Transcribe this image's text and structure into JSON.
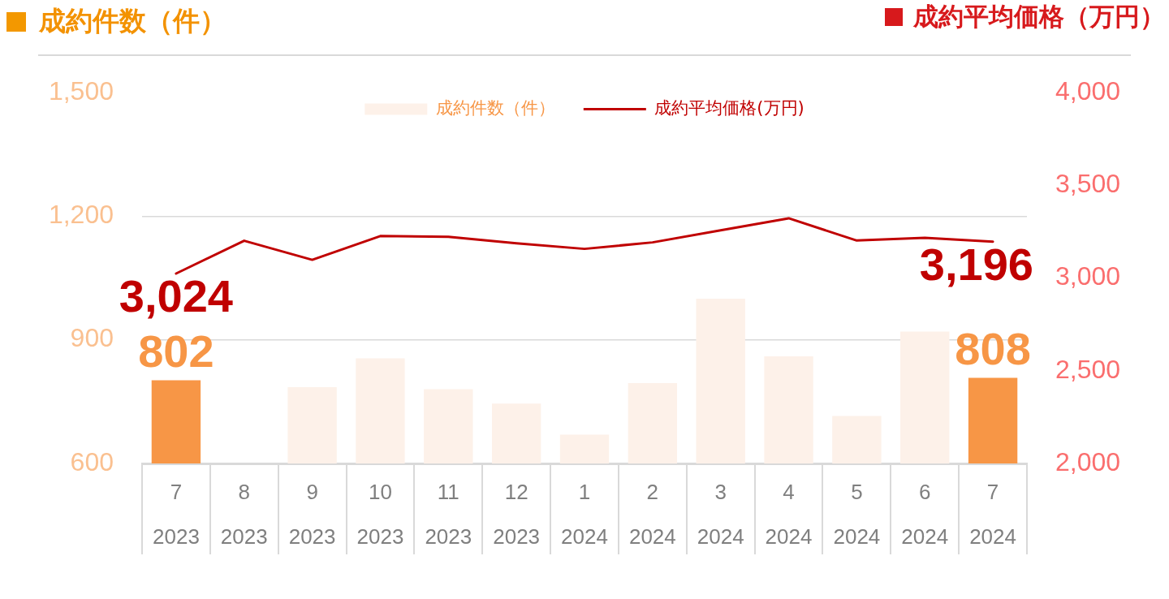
{
  "chart_data": {
    "type": "bar",
    "ylabel": "成約件数（件）",
    "y2label": "成約平均価格（万円）",
    "categories": [
      "7\n2023",
      "8\n2023",
      "9\n2023",
      "10\n2023",
      "11\n2023",
      "12\n2023",
      "1\n2024",
      "2\n2024",
      "3\n2024",
      "4\n2024",
      "5\n2024",
      "6\n2024",
      "7\n2024"
    ],
    "series": [
      {
        "name": "成約件数（件）",
        "color": "#fdf1e9",
        "colors": [
          "#f79646",
          "#fdf1e9",
          "#fdf1e9",
          "#fdf1e9",
          "#fdf1e9",
          "#fdf1e9",
          "#fdf1e9",
          "#fdf1e9",
          "#fdf1e9",
          "#fdf1e9",
          "#fdf1e9",
          "#fdf1e9",
          "#f79646"
        ],
        "values": [
          802,
          null,
          785,
          855,
          780,
          745,
          670,
          795,
          1000,
          860,
          715,
          920,
          808
        ],
        "value_labels": [
          "802",
          null,
          null,
          null,
          null,
          null,
          null,
          null,
          null,
          null,
          null,
          null,
          "808"
        ]
      },
      {
        "name": "成約平均価格(万円)",
        "type": "line",
        "axis": "y2",
        "color": "#c00000",
        "values": [
          3024,
          3201,
          3098,
          3226,
          3222,
          3187,
          3157,
          3192,
          3257,
          3322,
          3202,
          3217,
          3196
        ],
        "value_labels": [
          "3,024",
          null,
          null,
          null,
          null,
          null,
          null,
          null,
          null,
          null,
          null,
          null,
          "3,196"
        ]
      }
    ],
    "ylim": [
      600,
      1500
    ],
    "yticks": [
      600,
      900,
      {
        "value": 1200,
        "label": "1,200"
      },
      {
        "value": 1500,
        "label": "1,500"
      }
    ],
    "y2lim": [
      2000,
      4000
    ],
    "y2ticks": [
      {
        "value": 2000,
        "label": "2,000"
      },
      {
        "value": 2500,
        "label": "2,500"
      },
      {
        "value": 3000,
        "label": "3,000"
      },
      {
        "value": 3500,
        "label": "3,500"
      },
      {
        "value": 4000,
        "label": "4,000"
      }
    ],
    "grid": "y",
    "legend": "top",
    "marker": "none",
    "line_style": "solid"
  }
}
